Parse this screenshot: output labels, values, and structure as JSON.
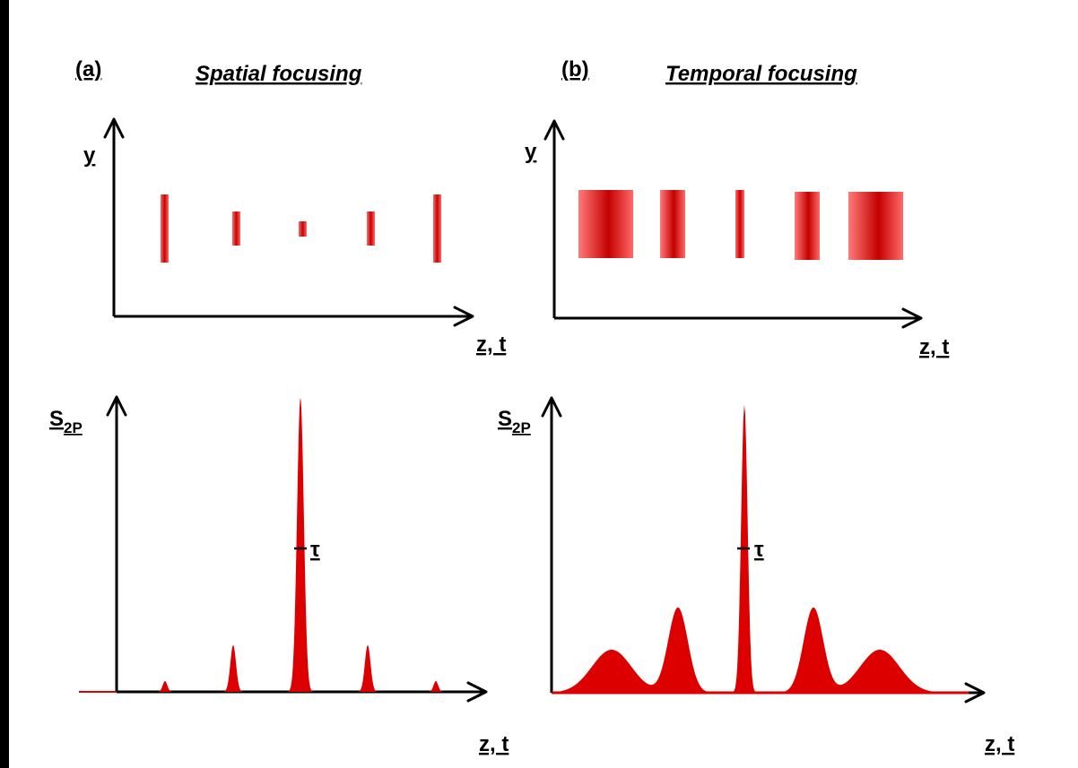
{
  "panel_a": {
    "tag": "(a)",
    "title": "Spatial focusing",
    "top_plot": {
      "ylabel": "y",
      "xlabel": "z, t"
    },
    "bottom_plot": {
      "ylabel_main": "S",
      "ylabel_sub": "2P",
      "xlabel": "z, t",
      "marker": "τ"
    }
  },
  "panel_b": {
    "tag": "(b)",
    "title": "Temporal focusing",
    "top_plot": {
      "ylabel": "y",
      "xlabel": "z, t"
    },
    "bottom_plot": {
      "ylabel_main": "S",
      "ylabel_sub": "2P",
      "xlabel": "z, t",
      "marker": "τ"
    }
  },
  "colors": {
    "pulse": "#dd0000",
    "pulse_light": "#ff7a7a",
    "frame": "#000000"
  }
}
